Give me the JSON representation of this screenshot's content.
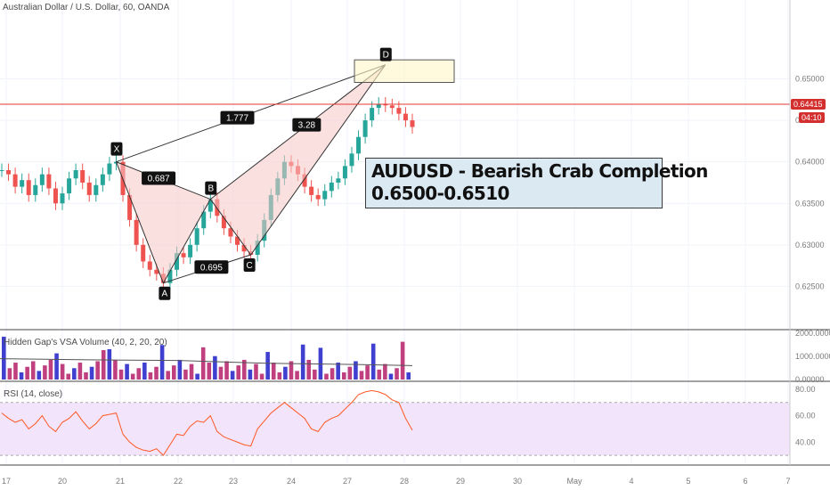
{
  "header": {
    "symbol_title": "Australian Dollar / U.S. Dollar, 60, OANDA",
    "volume_title": "Hidden Gap's VSA Volume (40, 2, 20, 20)",
    "rsi_title": "RSI (14, close)"
  },
  "note": {
    "line1": "AUDUSD - Bearish Crab Completion",
    "line2": "0.6500-0.6510"
  },
  "price_tag": {
    "value": "0.64415",
    "timer": "04:10",
    "color": "#d32f2f"
  },
  "colors": {
    "up": "#26a69a",
    "down": "#ef5350",
    "pattern_fill": "#f7c6c6",
    "rsi": "#ff5722",
    "rsi_band": "#f1e4fb",
    "vol_up": "#3f3fd0",
    "vol_down": "#c0407f"
  },
  "chart_data": {
    "type": "candlestick",
    "title": "Australian Dollar / U.S. Dollar, 60, OANDA",
    "price_axis": {
      "ylim": [
        0.62,
        0.6595
      ],
      "ticks": [
        "0.62500",
        "0.63000",
        "0.63500",
        "0.64000",
        "0.64500",
        "0.65000"
      ]
    },
    "x_ticks": [
      "17",
      "20",
      "21",
      "22",
      "23",
      "24",
      "27",
      "28",
      "29",
      "30",
      "May",
      "4",
      "5",
      "6",
      "7"
    ],
    "pattern": {
      "points": [
        {
          "label": "X",
          "day": 21.7,
          "price": 0.64
        },
        {
          "label": "A",
          "day": 23.3,
          "price": 0.6254
        },
        {
          "label": "B",
          "day": 24.3,
          "price": 0.6355
        },
        {
          "label": "C",
          "day": 25.3,
          "price": 0.6288
        },
        {
          "label": "D",
          "day": 28.3,
          "price": 0.6517
        }
      ],
      "ratios": [
        {
          "label": "1.777",
          "between": [
            "X",
            "D"
          ]
        },
        {
          "label": "3.28",
          "between": [
            "B",
            "D"
          ]
        },
        {
          "label": "0.687",
          "between": [
            "X",
            "B"
          ]
        },
        {
          "label": "0.695",
          "between": [
            "A",
            "C"
          ]
        }
      ],
      "target_zone": [
        0.65,
        0.651
      ]
    },
    "close_approx": [
      0.639,
      0.6385,
      0.637,
      0.6378,
      0.636,
      0.6372,
      0.6385,
      0.6368,
      0.635,
      0.6362,
      0.638,
      0.639,
      0.6375,
      0.636,
      0.6372,
      0.6385,
      0.6398,
      0.64,
      0.636,
      0.633,
      0.63,
      0.628,
      0.627,
      0.6265,
      0.6254,
      0.627,
      0.629,
      0.6285,
      0.63,
      0.632,
      0.634,
      0.6355,
      0.6335,
      0.632,
      0.631,
      0.63,
      0.6292,
      0.6288,
      0.6305,
      0.633,
      0.636,
      0.638,
      0.64,
      0.6395,
      0.6385,
      0.637,
      0.636,
      0.6355,
      0.6365,
      0.6375,
      0.638,
      0.6395,
      0.641,
      0.643,
      0.645,
      0.6465,
      0.647,
      0.6468,
      0.6465,
      0.6458,
      0.645,
      0.6442
    ],
    "volume_axis": {
      "ylim": [
        0,
        2000
      ],
      "ticks": [
        "0.00000",
        "1000.00000",
        "2000.00000"
      ]
    },
    "rsi": {
      "ylim": [
        30,
        80
      ],
      "ticks": [
        "40.00",
        "60.00",
        "80.00"
      ],
      "band": [
        30,
        70
      ],
      "values": [
        62,
        58,
        55,
        57,
        50,
        54,
        60,
        52,
        48,
        55,
        58,
        63,
        56,
        50,
        54,
        60,
        61,
        62,
        46,
        40,
        36,
        34,
        33,
        35,
        30,
        38,
        46,
        45,
        52,
        56,
        55,
        60,
        48,
        44,
        42,
        40,
        38,
        37,
        50,
        56,
        62,
        66,
        70,
        66,
        62,
        58,
        50,
        48,
        55,
        58,
        60,
        65,
        70,
        76,
        78,
        79,
        78,
        76,
        72,
        70,
        58,
        49
      ]
    }
  }
}
